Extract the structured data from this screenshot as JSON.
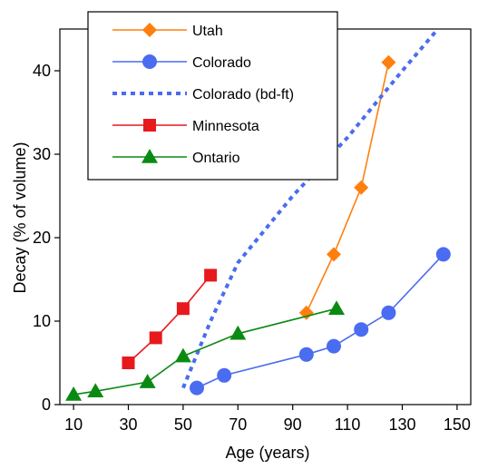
{
  "chart_data": {
    "type": "line",
    "title": "",
    "xlabel": "Age  (years)",
    "ylabel": "Decay (% of volume)",
    "xlim": [
      5,
      155
    ],
    "ylim": [
      0,
      45
    ],
    "x_ticks": [
      10,
      30,
      50,
      70,
      90,
      110,
      130,
      150
    ],
    "y_ticks": [
      0,
      10,
      20,
      30,
      40
    ],
    "grid": false,
    "legend_position": "top-left",
    "series": [
      {
        "name": "Utah",
        "color": "#ff7f0e",
        "marker": "diamond",
        "line": "solid",
        "points": [
          [
            95,
            11
          ],
          [
            105,
            18
          ],
          [
            115,
            26
          ],
          [
            125,
            41
          ]
        ]
      },
      {
        "name": "Colorado",
        "color": "#4a6cf0",
        "marker": "circle",
        "line": "solid",
        "points": [
          [
            55,
            2
          ],
          [
            65,
            3.5
          ],
          [
            95,
            6
          ],
          [
            105,
            7
          ],
          [
            115,
            9
          ],
          [
            125,
            11
          ],
          [
            145,
            18
          ]
        ]
      },
      {
        "name": "Colorado (bd-ft)",
        "color": "#4a6cf0",
        "marker": "none",
        "line": "dotted",
        "points": [
          [
            50,
            2
          ],
          [
            60,
            10
          ],
          [
            70,
            17
          ],
          [
            80,
            21
          ],
          [
            90,
            25
          ],
          [
            100,
            28.5
          ],
          [
            110,
            32
          ],
          [
            120,
            36
          ],
          [
            130,
            40
          ],
          [
            143,
            45
          ]
        ]
      },
      {
        "name": "Minnesota",
        "color": "#e8191c",
        "marker": "square",
        "line": "solid",
        "points": [
          [
            30,
            5
          ],
          [
            40,
            8
          ],
          [
            50,
            11.5
          ],
          [
            60,
            15.5
          ]
        ]
      },
      {
        "name": "Ontario",
        "color": "#0a8a12",
        "marker": "triangle",
        "line": "solid",
        "points": [
          [
            10,
            1.2
          ],
          [
            18,
            1.6
          ],
          [
            37,
            2.7
          ],
          [
            50,
            5.8
          ],
          [
            70,
            8.5
          ],
          [
            106,
            11.5
          ]
        ]
      }
    ]
  }
}
